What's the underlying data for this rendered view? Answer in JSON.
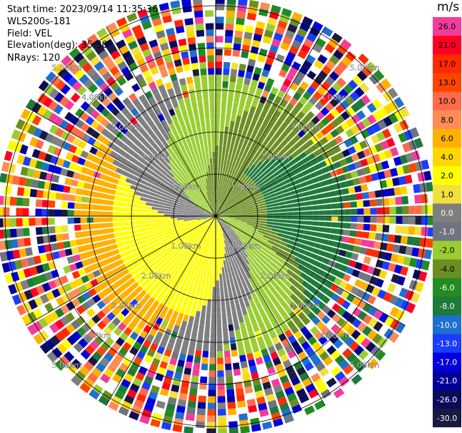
{
  "header": {
    "start_time": "Start time: 2023/09/14 11:35:36",
    "instrument": "WLS200s-181",
    "field": "Field: VEL",
    "elevation": "Elevation(deg): 35.30",
    "nrays": "NRays: 120"
  },
  "colorbar": {
    "unit": "m/s",
    "ticks": [
      "26.0",
      "21.0",
      "17.0",
      "13.0",
      "10.0",
      "8.0",
      "6.0",
      "4.0",
      "2.0",
      "1.0",
      "0.0",
      "-1.0",
      "-2.0",
      "-4.0",
      "-6.0",
      "-8.0",
      "-10.0",
      "-13.0",
      "-17.0",
      "-21.0",
      "-26.0",
      "-30.0"
    ],
    "colors": [
      "#f23c9c",
      "#ff0022",
      "#ff2a00",
      "#ff4400",
      "#ff6a4a",
      "#ff8c55",
      "#ffb000",
      "#ffd700",
      "#ffff00",
      "#f4e03c",
      "#7f7f7f",
      "#6e7480",
      "#9acd32",
      "#6b8e23",
      "#228b22",
      "#1e7a3c",
      "#1e6fd0",
      "#1a3cff",
      "#0000dd",
      "#000099",
      "#0b0b5a",
      "#1a1a40"
    ]
  },
  "chart_data": {
    "type": "heatmap",
    "title": "",
    "field": "VEL",
    "units": "m/s",
    "nrays": 120,
    "elevation_deg": 35.3,
    "range_rings_km": [
      1.0,
      2.0,
      3.0,
      4.0,
      5.0
    ],
    "range_ring_labels": [
      "1.00km",
      "2.00km",
      "3.00km",
      "4.00km",
      "5.00km"
    ],
    "max_range_km": 5.2,
    "grid": true,
    "colorscale_range": [
      -30.0,
      26.0
    ],
    "pattern": {
      "near_range": "green to olive (-2 to -6 m/s) toward north-northeast, yellow and orange (2 to 4 m/s) toward south-southwest, gray (~0 m/s) rotating between them",
      "far_range": "noisy, mixed colors beyond about 3.5 km"
    }
  }
}
